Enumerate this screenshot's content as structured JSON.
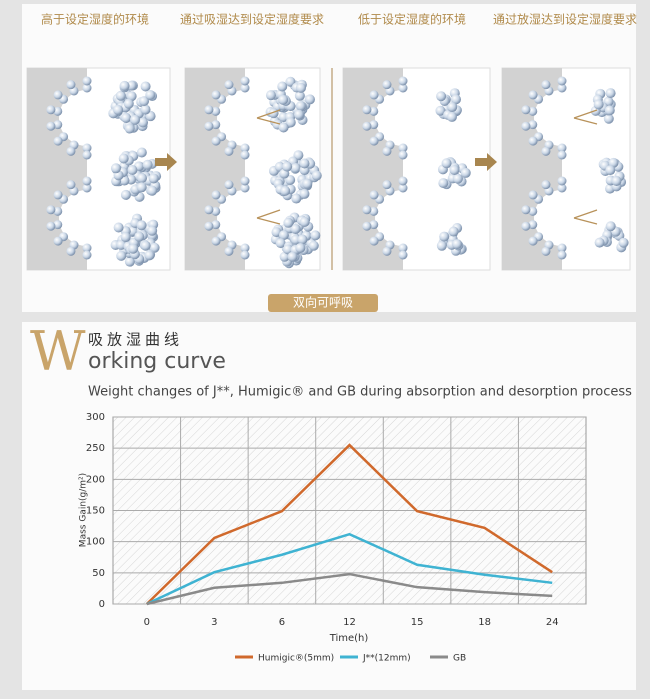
{
  "diagram": {
    "labels": [
      "高于设定湿度的环境",
      "通过吸湿达到设定湿度要求",
      "低于设定湿度的环境",
      "通过放湿达到设定湿度要求"
    ],
    "caption": "双向可呼吸"
  },
  "heading": {
    "initial": "W",
    "chinese": "吸放湿曲线",
    "rest": "orking curve"
  },
  "chart_data": {
    "type": "line",
    "title": "Weight changes of J**, Humigic® and GB during absorption and desorption process",
    "x_label": "Time(h)",
    "y_label": "Mass Gain(g/m²)",
    "categories": [
      "0",
      "3",
      "6",
      "12",
      "15",
      "18",
      "24"
    ],
    "series": [
      {
        "name": "Humigic®(5mm)",
        "color": "#d0692c",
        "values": [
          0,
          106,
          149,
          255,
          149,
          122,
          51
        ]
      },
      {
        "name": "J**(12mm)",
        "color": "#3fb3d2",
        "values": [
          0,
          51,
          79,
          112,
          63,
          47,
          34
        ]
      },
      {
        "name": "GB",
        "color": "#8a8a8a",
        "values": [
          0,
          26,
          34,
          48,
          27,
          19,
          13
        ]
      }
    ],
    "ylim": [
      0,
      300
    ],
    "yticks": [
      0,
      50,
      100,
      150,
      200,
      250,
      300
    ],
    "grid": true,
    "legend": "bottom"
  }
}
